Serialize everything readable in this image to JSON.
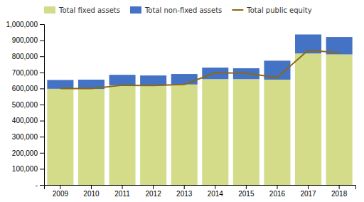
{
  "chart_data": {
    "type": "bar",
    "stacked": true,
    "categories": [
      "2009",
      "2010",
      "2011",
      "2012",
      "2013",
      "2014",
      "2015",
      "2016",
      "2017",
      "2018"
    ],
    "series": [
      {
        "name": "Total fixed assets",
        "type": "bar",
        "color": "#d4dc8a",
        "values": [
          598000,
          597000,
          620000,
          618000,
          625000,
          658000,
          658000,
          655000,
          818000,
          812000
        ]
      },
      {
        "name": "Total non-fixed assets",
        "type": "bar",
        "color": "#4472c4",
        "values": [
          55000,
          58000,
          65000,
          63000,
          65000,
          72000,
          68000,
          118000,
          118000,
          108000
        ]
      },
      {
        "name": "Total public equity",
        "type": "line",
        "color": "#8b6914",
        "values": [
          600000,
          600000,
          620000,
          618000,
          625000,
          698000,
          695000,
          668000,
          838000,
          822000
        ]
      }
    ],
    "ylim": [
      0,
      1000000
    ],
    "yticks": [
      {
        "value": 0,
        "label": "-"
      },
      {
        "value": 100000,
        "label": "100,000"
      },
      {
        "value": 200000,
        "label": "200,000"
      },
      {
        "value": 300000,
        "label": "300,000"
      },
      {
        "value": 400000,
        "label": "400,000"
      },
      {
        "value": 500000,
        "label": "500,000"
      },
      {
        "value": 600000,
        "label": "600,000"
      },
      {
        "value": 700000,
        "label": "700,000"
      },
      {
        "value": 800000,
        "label": "800,000"
      },
      {
        "value": 900000,
        "label": "900,000"
      },
      {
        "value": 1000000,
        "label": "1,000,000"
      }
    ],
    "grid": false,
    "legend": "top"
  }
}
